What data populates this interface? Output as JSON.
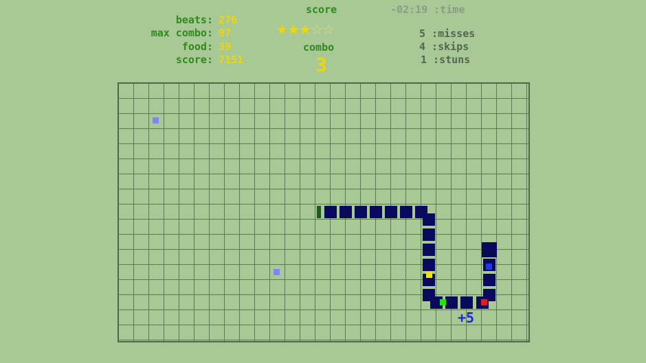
{
  "stats_left": [
    {
      "label": "beats:",
      "value": "276"
    },
    {
      "label": "max combo:",
      "value": "97"
    },
    {
      "label": "food:",
      "value": "39"
    },
    {
      "label": "score:",
      "value": "7151"
    }
  ],
  "center": {
    "score_label": "score",
    "stars_filled": 3,
    "stars_total": 5,
    "combo_label": "combo",
    "combo_value": "3"
  },
  "time": "-02:19 :time",
  "stats_right": [
    "5 :misses",
    "4 :skips",
    "1 :stuns"
  ],
  "popup": "+5",
  "colors": {
    "background": "#a8c896",
    "snake": "#0a0a5c",
    "label": "#2f8a1c",
    "value": "#f2d600"
  },
  "food_icons": [
    "food-blue-square",
    "food-blue-square"
  ]
}
